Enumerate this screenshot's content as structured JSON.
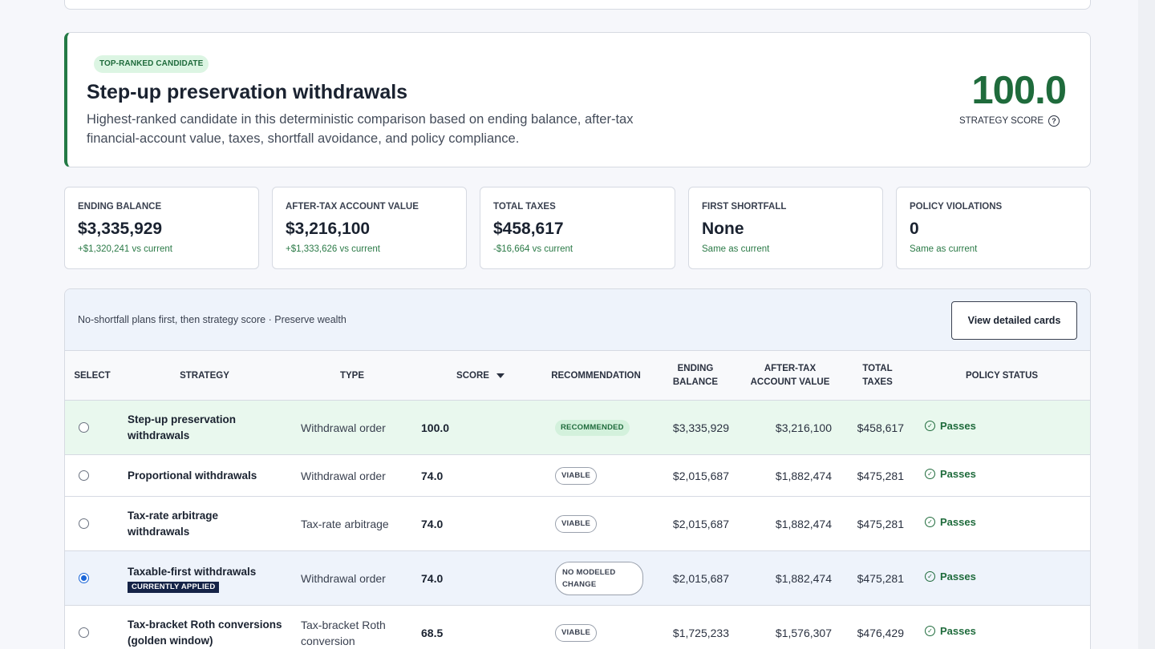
{
  "hero": {
    "badge": "TOP-RANKED CANDIDATE",
    "title": "Step-up preservation withdrawals",
    "description": "Highest-ranked candidate in this deterministic comparison based on ending balance, after-tax financial-account value, taxes, shortfall avoidance, and policy compliance.",
    "score": "100.0",
    "score_label": "STRATEGY SCORE",
    "help_icon": "?"
  },
  "metrics": [
    {
      "label": "ENDING BALANCE",
      "value": "$3,335,929",
      "delta": "+$1,320,241 vs current"
    },
    {
      "label": "AFTER-TAX ACCOUNT VALUE",
      "value": "$3,216,100",
      "delta": "+$1,333,626 vs current"
    },
    {
      "label": "TOTAL TAXES",
      "value": "$458,617",
      "delta": "-$16,664 vs current"
    },
    {
      "label": "FIRST SHORTFALL",
      "value": "None",
      "delta": "Same as current"
    },
    {
      "label": "POLICY VIOLATIONS",
      "value": "0",
      "delta": "Same as current"
    }
  ],
  "toolbar": {
    "sort_text": "No-shortfall plans first, then strategy score · Preserve wealth",
    "view_button": "View detailed cards"
  },
  "columns": {
    "select": "SELECT",
    "strategy": "STRATEGY",
    "type": "TYPE",
    "score": "SCORE",
    "recommendation": "RECOMMENDATION",
    "ending_balance_1": "ENDING",
    "ending_balance_2": "BALANCE",
    "after_tax_1": "AFTER-TAX",
    "after_tax_2": "ACCOUNT VALUE",
    "total_taxes_1": "TOTAL",
    "total_taxes_2": "TAXES",
    "policy_status": "POLICY STATUS"
  },
  "rows": [
    {
      "name_1": "Step-up preservation",
      "name_2": "withdrawals",
      "tag": "",
      "type_1": "Withdrawal order",
      "type_2": "",
      "score": "100.0",
      "recommendation": "RECOMMENDED",
      "ending_balance": "$3,335,929",
      "after_tax": "$3,216,100",
      "total_taxes": "$458,617",
      "status": "Passes"
    },
    {
      "name_1": "Proportional withdrawals",
      "name_2": "",
      "tag": "",
      "type_1": "Withdrawal order",
      "type_2": "",
      "score": "74.0",
      "recommendation": "VIABLE",
      "ending_balance": "$2,015,687",
      "after_tax": "$1,882,474",
      "total_taxes": "$475,281",
      "status": "Passes"
    },
    {
      "name_1": "Tax-rate arbitrage",
      "name_2": "withdrawals",
      "tag": "",
      "type_1": "Tax-rate arbitrage",
      "type_2": "",
      "score": "74.0",
      "recommendation": "VIABLE",
      "ending_balance": "$2,015,687",
      "after_tax": "$1,882,474",
      "total_taxes": "$475,281",
      "status": "Passes"
    },
    {
      "name_1": "Taxable-first withdrawals",
      "name_2": "",
      "tag": "CURRENTLY APPLIED",
      "type_1": "Withdrawal order",
      "type_2": "",
      "score": "74.0",
      "recommendation_1": "NO MODELED",
      "recommendation_2": "CHANGE",
      "ending_balance": "$2,015,687",
      "after_tax": "$1,882,474",
      "total_taxes": "$475,281",
      "status": "Passes"
    },
    {
      "name_1": "Tax-bracket Roth conversions",
      "name_2": "(golden window)",
      "tag": "",
      "type_1": "Tax-bracket Roth",
      "type_2": "conversion",
      "score": "68.5",
      "recommendation": "VIABLE",
      "ending_balance": "$1,725,233",
      "after_tax": "$1,576,307",
      "total_taxes": "$476,429",
      "status": "Passes"
    }
  ]
}
